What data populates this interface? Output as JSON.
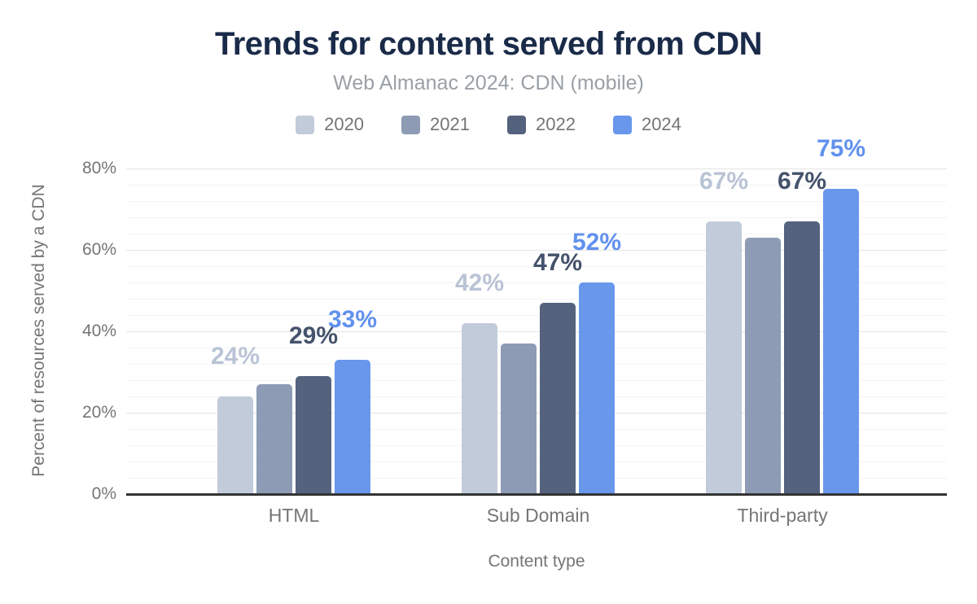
{
  "chart_data": {
    "type": "bar",
    "title": "Trends for content served from CDN",
    "subtitle": "Web Almanac 2024: CDN (mobile)",
    "categories": [
      "HTML",
      "Sub Domain",
      "Third-party"
    ],
    "series": [
      {
        "name": "2020",
        "color": "#c2cbda",
        "label_color": "#b9c3d5",
        "values": [
          24,
          42,
          67
        ],
        "data_labels": [
          "24%",
          "42%",
          "67%"
        ],
        "labels_shown": true
      },
      {
        "name": "2021",
        "color": "#8d9bb4",
        "label_color": "#8d9bb4",
        "values": [
          27,
          37,
          63
        ],
        "data_labels": [
          "",
          "",
          ""
        ],
        "labels_shown": false
      },
      {
        "name": "2022",
        "color": "#55627e",
        "label_color": "#45526b",
        "values": [
          29,
          47,
          67
        ],
        "data_labels": [
          "29%",
          "47%",
          "67%"
        ],
        "labels_shown": true
      },
      {
        "name": "2024",
        "color": "#6897ec",
        "label_color": "#6191ee",
        "values": [
          33,
          52,
          75
        ],
        "data_labels": [
          "33%",
          "52%",
          "75%"
        ],
        "labels_shown": true
      }
    ],
    "xlabel": "Content type",
    "ylabel": "Percent of resources served by a CDN",
    "ylim": [
      0,
      80
    ],
    "ytick_values": [
      0,
      20,
      40,
      60,
      80
    ],
    "ytick_labels": [
      "0%",
      "20%",
      "40%",
      "60%",
      "80%"
    ],
    "minor_grid_step": 4,
    "grid": "horizontal, major every 20% with minor lines every 4%",
    "legend_position": "top"
  },
  "colors": {
    "background": "#ffffff",
    "title": "#1a2b49",
    "subtitle": "#9aa0a6",
    "legend_text": "#757575",
    "axis_text": "#757575",
    "axis_line": "#333333",
    "major_grid": "#e4e4e4",
    "minor_grid": "#f4f4f4"
  }
}
